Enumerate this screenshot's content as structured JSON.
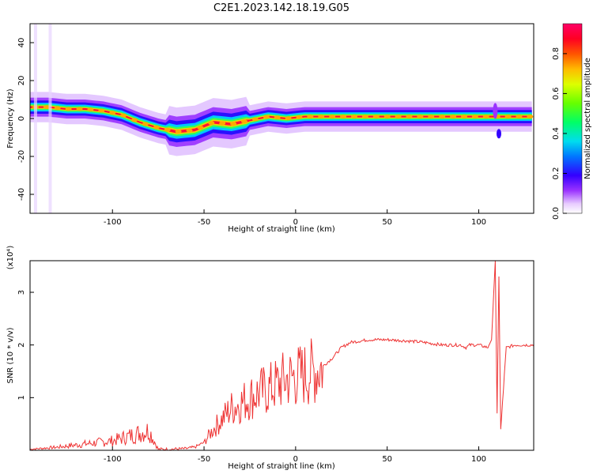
{
  "title": "C2E1.2023.142.18.19.G05",
  "colorbar": {
    "label": "Normalized spectral amplitude",
    "ticks": [
      "0.0",
      "0.2",
      "0.4",
      "0.6",
      "0.8"
    ],
    "tick_values": [
      0.0,
      0.2,
      0.4,
      0.6,
      0.8
    ],
    "range": [
      0,
      0.95
    ]
  },
  "chart_data": [
    {
      "type": "heatmap",
      "title": "",
      "xlabel": "Height of straight line (km)",
      "ylabel": "Frequency (Hz)",
      "xlim": [
        -145,
        130
      ],
      "ylim": [
        -50,
        50
      ],
      "xticks": [
        -100,
        -50,
        0,
        50,
        100
      ],
      "yticks": [
        -40,
        -20,
        0,
        20,
        40
      ],
      "ridge": {
        "x": [
          -145,
          -135,
          -125,
          -115,
          -105,
          -95,
          -85,
          -75,
          -65,
          -55,
          -45,
          -35,
          -25,
          -15,
          -5,
          5,
          15,
          25,
          50,
          75,
          100,
          110,
          120,
          130
        ],
        "freq": [
          6,
          6,
          5,
          5,
          4,
          2,
          -2,
          -5,
          -7,
          -6,
          -2,
          -3,
          -1,
          1,
          0,
          1,
          1,
          1,
          1,
          1,
          1,
          1,
          1,
          1
        ]
      },
      "color_scale": "rainbow"
    },
    {
      "type": "line",
      "title": "",
      "xlabel": "Height of straight line (km)",
      "ylabel": "SNR (10 * v/v)",
      "y_multiplier": "(x10⁴)",
      "xlim": [
        -145,
        130
      ],
      "ylim": [
        0,
        3.6
      ],
      "xticks": [
        -100,
        -50,
        0,
        50,
        100
      ],
      "yticks": [
        1,
        2,
        3
      ],
      "series": [
        {
          "color": "#ee3333",
          "x": [
            -145,
            -130,
            -115,
            -100,
            -90,
            -80,
            -75,
            -70,
            -60,
            -55,
            -50,
            -45,
            -40,
            -35,
            -30,
            -25,
            -20,
            -15,
            -10,
            -5,
            0,
            5,
            10,
            15,
            20,
            25,
            30,
            40,
            50,
            60,
            70,
            80,
            90,
            93,
            95,
            100,
            105,
            107,
            109,
            110,
            111,
            112,
            115,
            120,
            130
          ],
          "y": [
            0.02,
            0.06,
            0.12,
            0.18,
            0.28,
            0.38,
            0.02,
            0.02,
            0.03,
            0.06,
            0.15,
            0.4,
            0.6,
            0.8,
            0.9,
            1.0,
            1.1,
            1.15,
            1.25,
            1.35,
            1.4,
            1.45,
            1.5,
            1.6,
            1.75,
            1.95,
            2.05,
            2.1,
            2.1,
            2.08,
            2.05,
            2.0,
            2.0,
            1.95,
            2.0,
            2.0,
            1.95,
            2.1,
            3.6,
            0.7,
            3.3,
            0.4,
            1.95,
            2.0,
            2.0
          ]
        }
      ]
    }
  ]
}
